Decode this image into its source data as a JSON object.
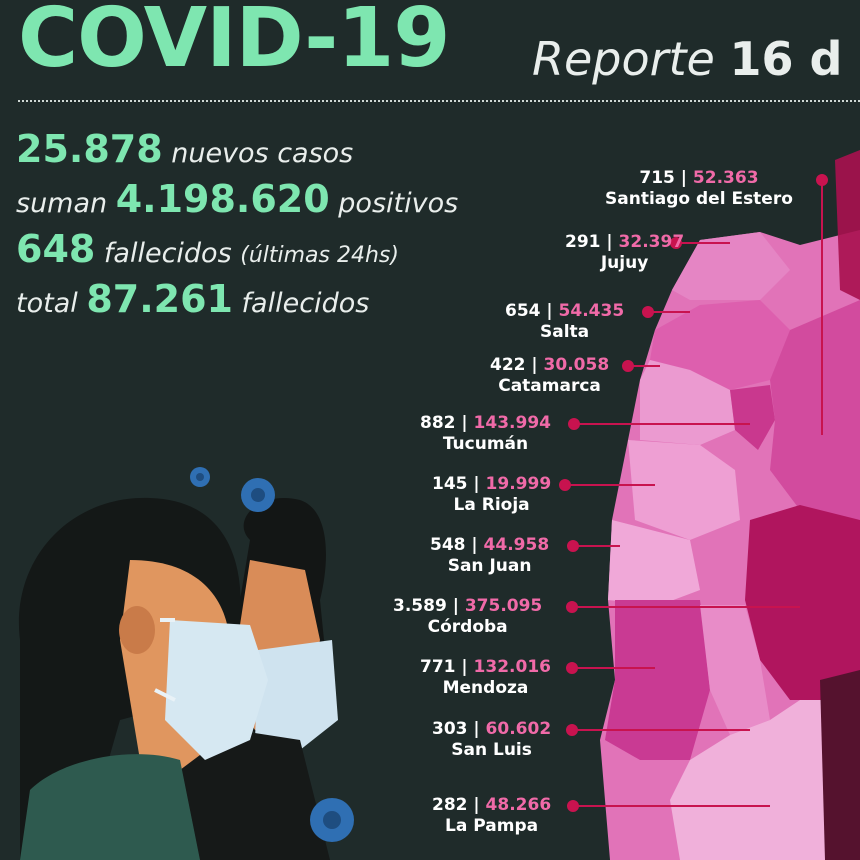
{
  "header": {
    "title": "COVID-19",
    "subtitle_word": "Reporte",
    "subtitle_day": "16 d"
  },
  "stats": [
    {
      "num": "25.878",
      "pre": "",
      "text": " nuevos casos",
      "small": ""
    },
    {
      "num": "4.198.620",
      "pre": "suman ",
      "text": " positivos",
      "small": ""
    },
    {
      "num": "648",
      "pre": "",
      "text": " fallecidos ",
      "small": "(últimas 24hs)"
    },
    {
      "num": "87.261",
      "pre": "total ",
      "text": " fallecidos",
      "small": ""
    }
  ],
  "provinces": [
    {
      "name": "Santiago del Estero",
      "deaths": "715",
      "cases": "52.363"
    },
    {
      "name": "Jujuy",
      "deaths": "291",
      "cases": "32.397"
    },
    {
      "name": "Salta",
      "deaths": "654",
      "cases": "54.435"
    },
    {
      "name": "Catamarca",
      "deaths": "422",
      "cases": "30.058"
    },
    {
      "name": "Tucumán",
      "deaths": "882",
      "cases": "143.994"
    },
    {
      "name": "La Rioja",
      "deaths": "145",
      "cases": "19.999"
    },
    {
      "name": "San Juan",
      "deaths": "548",
      "cases": "44.958"
    },
    {
      "name": "Córdoba",
      "deaths": "3.589",
      "cases": "375.095"
    },
    {
      "name": "Mendoza",
      "deaths": "771",
      "cases": "132.016"
    },
    {
      "name": "San Luis",
      "deaths": "303",
      "cases": "60.602"
    },
    {
      "name": "La Pampa",
      "deaths": "282",
      "cases": "48.266"
    }
  ],
  "separator": " | ",
  "colors": {
    "background": "#1f2b2a",
    "accent_green": "#7ee6b0",
    "accent_pink": "#f06aa8",
    "connector": "#c8134f"
  }
}
